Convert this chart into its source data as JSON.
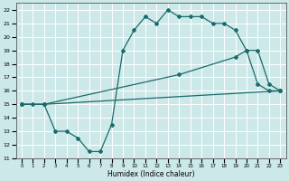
{
  "xlabel": "Humidex (Indice chaleur)",
  "xlim": [
    -0.5,
    23.5
  ],
  "ylim": [
    11,
    22.5
  ],
  "xticks": [
    0,
    1,
    2,
    3,
    4,
    5,
    6,
    7,
    8,
    9,
    10,
    11,
    12,
    13,
    14,
    15,
    16,
    17,
    18,
    19,
    20,
    21,
    22,
    23
  ],
  "yticks": [
    11,
    12,
    13,
    14,
    15,
    16,
    17,
    18,
    19,
    20,
    21,
    22
  ],
  "bg_color": "#cde8e8",
  "line_color": "#1a6b6b",
  "grid_color": "#ffffff",
  "line1_x": [
    0,
    1,
    2,
    3,
    4,
    5,
    6,
    7,
    8,
    9,
    10,
    11,
    12,
    13,
    14,
    15,
    16,
    17,
    18,
    19,
    20,
    21,
    22,
    23
  ],
  "line1_y": [
    15,
    15,
    15,
    13,
    13,
    12.5,
    11.5,
    11.5,
    13.5,
    19,
    20.5,
    21.5,
    21,
    22,
    21.5,
    21.5,
    21.5,
    21,
    21,
    20.5,
    19,
    16.5,
    16,
    16
  ],
  "line2_x": [
    0,
    2,
    23
  ],
  "line2_y": [
    15,
    15,
    16
  ],
  "line3_x": [
    0,
    2,
    14,
    19,
    20,
    21,
    22,
    23
  ],
  "line3_y": [
    15,
    15,
    17.2,
    18.5,
    19,
    19,
    16.5,
    16
  ]
}
